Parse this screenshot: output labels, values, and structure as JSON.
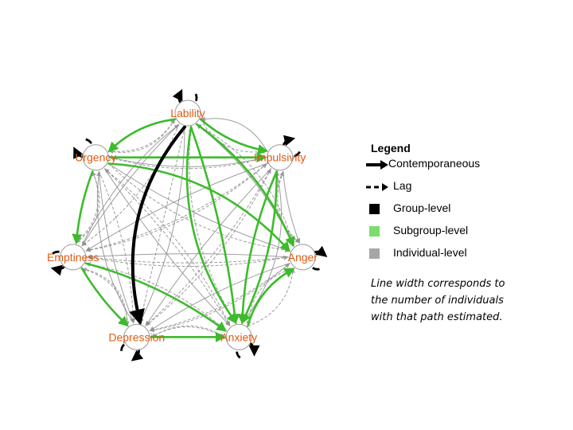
{
  "nodes": [
    {
      "id": "lability",
      "label": "Lability"
    },
    {
      "id": "impulsivity",
      "label": "Impulsivity"
    },
    {
      "id": "anger",
      "label": "Anger"
    },
    {
      "id": "anxiety",
      "label": "Anxiety"
    },
    {
      "id": "depression",
      "label": "Depression"
    },
    {
      "id": "emptiness",
      "label": "Emptiness"
    },
    {
      "id": "urgency",
      "label": "Urgency"
    }
  ],
  "colors": {
    "group": "#000000",
    "subgroup": "#3dbb2c",
    "individual": "#8c8c8c",
    "label": "#e05a14",
    "swatch_group": "#000000",
    "swatch_subgroup": "#7ddc6e",
    "swatch_individual": "#a6a6a6"
  },
  "edges": {
    "group": [
      {
        "from": "lability",
        "to": "depression",
        "type": "contemporaneous",
        "bend": 0.22
      }
    ],
    "subgroup": [
      {
        "from": "urgency",
        "to": "impulsivity",
        "type": "contemporaneous",
        "bend": 0.0
      },
      {
        "from": "lability",
        "to": "urgency",
        "type": "contemporaneous",
        "bend": 0.12
      },
      {
        "from": "urgency",
        "to": "anger",
        "type": "contemporaneous",
        "bend": -0.18
      },
      {
        "from": "urgency",
        "to": "emptiness",
        "type": "contemporaneous",
        "bend": 0.05
      },
      {
        "from": "lability",
        "to": "anxiety",
        "type": "contemporaneous",
        "bend": 0.18
      },
      {
        "from": "lability",
        "to": "anxiety",
        "type": "contemporaneous",
        "bend": -0.05
      },
      {
        "from": "lability",
        "to": "anger",
        "type": "contemporaneous",
        "bend": -0.12
      },
      {
        "from": "emptiness",
        "to": "depression",
        "type": "contemporaneous",
        "bend": 0.05
      },
      {
        "from": "emptiness",
        "to": "anxiety",
        "type": "contemporaneous",
        "bend": -0.08
      },
      {
        "from": "depression",
        "to": "anxiety",
        "type": "contemporaneous",
        "bend": 0.0
      },
      {
        "from": "anxiety",
        "to": "anger",
        "type": "contemporaneous",
        "bend": -0.15
      },
      {
        "from": "impulsivity",
        "to": "anxiety",
        "type": "contemporaneous",
        "bend": 0.08
      },
      {
        "from": "impulsivity",
        "to": "anxiety",
        "type": "contemporaneous",
        "bend": -0.1
      },
      {
        "from": "lability",
        "to": "impulsivity",
        "type": "contemporaneous",
        "bend": 0.1
      }
    ],
    "individual": [
      {
        "from": "lability",
        "to": "impulsivity",
        "type": "lag",
        "bend": 0.25
      },
      {
        "from": "impulsivity",
        "to": "anger",
        "type": "contemporaneous",
        "bend": 0.05
      },
      {
        "from": "impulsivity",
        "to": "anger",
        "type": "lag",
        "bend": 0.28
      },
      {
        "from": "anger",
        "to": "anxiety",
        "type": "lag",
        "bend": 0.25
      },
      {
        "from": "anxiety",
        "to": "depression",
        "type": "lag",
        "bend": 0.22
      },
      {
        "from": "depression",
        "to": "emptiness",
        "type": "lag",
        "bend": 0.25
      },
      {
        "from": "emptiness",
        "to": "urgency",
        "type": "lag",
        "bend": 0.28
      },
      {
        "from": "urgency",
        "to": "lability",
        "type": "lag",
        "bend": 0.25
      },
      {
        "from": "lability",
        "to": "emptiness",
        "type": "contemporaneous",
        "bend": 0.05
      },
      {
        "from": "lability",
        "to": "emptiness",
        "type": "lag",
        "bend": -0.12
      },
      {
        "from": "lability",
        "to": "depression",
        "type": "contemporaneous",
        "bend": -0.1
      },
      {
        "from": "lability",
        "to": "depression",
        "type": "lag",
        "bend": 0.0
      },
      {
        "from": "urgency",
        "to": "depression",
        "type": "contemporaneous",
        "bend": 0.06
      },
      {
        "from": "urgency",
        "to": "depression",
        "type": "lag",
        "bend": -0.08
      },
      {
        "from": "urgency",
        "to": "anxiety",
        "type": "contemporaneous",
        "bend": 0.04
      },
      {
        "from": "urgency",
        "to": "anxiety",
        "type": "lag",
        "bend": -0.06
      },
      {
        "from": "urgency",
        "to": "impulsivity",
        "type": "lag",
        "bend": 0.12
      },
      {
        "from": "urgency",
        "to": "anger",
        "type": "contemporaneous",
        "bend": 0.06
      },
      {
        "from": "urgency",
        "to": "anger",
        "type": "lag",
        "bend": 0.14
      },
      {
        "from": "impulsivity",
        "to": "emptiness",
        "type": "contemporaneous",
        "bend": 0.05
      },
      {
        "from": "impulsivity",
        "to": "emptiness",
        "type": "lag",
        "bend": -0.1
      },
      {
        "from": "impulsivity",
        "to": "depression",
        "type": "contemporaneous",
        "bend": 0.04
      },
      {
        "from": "impulsivity",
        "to": "depression",
        "type": "lag",
        "bend": -0.07
      },
      {
        "from": "impulsivity",
        "to": "urgency",
        "type": "contemporaneous",
        "bend": -0.1
      },
      {
        "from": "anger",
        "to": "emptiness",
        "type": "contemporaneous",
        "bend": 0.03
      },
      {
        "from": "anger",
        "to": "emptiness",
        "type": "lag",
        "bend": -0.05
      },
      {
        "from": "anger",
        "to": "depression",
        "type": "contemporaneous",
        "bend": 0.06
      },
      {
        "from": "anger",
        "to": "depression",
        "type": "lag",
        "bend": -0.1
      },
      {
        "from": "anger",
        "to": "lability",
        "type": "contemporaneous",
        "bend": 0.1
      },
      {
        "from": "anger",
        "to": "lability",
        "type": "lag",
        "bend": 0.18
      },
      {
        "from": "anxiety",
        "to": "lability",
        "type": "lag",
        "bend": -0.15
      },
      {
        "from": "anxiety",
        "to": "urgency",
        "type": "lag",
        "bend": 0.1
      },
      {
        "from": "anxiety",
        "to": "emptiness",
        "type": "lag",
        "bend": 0.12
      },
      {
        "from": "anxiety",
        "to": "impulsivity",
        "type": "contemporaneous",
        "bend": 0.2
      },
      {
        "from": "depression",
        "to": "impulsivity",
        "type": "lag",
        "bend": 0.1
      },
      {
        "from": "depression",
        "to": "anger",
        "type": "lag",
        "bend": 0.12
      },
      {
        "from": "depression",
        "to": "anxiety",
        "type": "lag",
        "bend": -0.2
      },
      {
        "from": "depression",
        "to": "urgency",
        "type": "contemporaneous",
        "bend": -0.15
      },
      {
        "from": "emptiness",
        "to": "lability",
        "type": "contemporaneous",
        "bend": -0.1
      },
      {
        "from": "emptiness",
        "to": "anger",
        "type": "lag",
        "bend": 0.08
      },
      {
        "from": "emptiness",
        "to": "impulsivity",
        "type": "lag",
        "bend": 0.12
      },
      {
        "from": "emptiness",
        "to": "depression",
        "type": "lag",
        "bend": -0.28
      },
      {
        "from": "urgency",
        "to": "emptiness",
        "type": "lag",
        "bend": -0.25
      },
      {
        "from": "lability",
        "to": "urgency",
        "type": "lag",
        "bend": -0.22
      },
      {
        "from": "impulsivity",
        "to": "lability",
        "type": "contemporaneous",
        "bend": 0.25
      },
      {
        "from": "anger",
        "to": "impulsivity",
        "type": "lag",
        "bend": -0.25
      },
      {
        "from": "anxiety",
        "to": "anger",
        "type": "lag",
        "bend": 0.22
      }
    ],
    "self_loops": [
      {
        "node": "lability",
        "type": "group"
      },
      {
        "node": "impulsivity",
        "type": "group"
      },
      {
        "node": "anger",
        "type": "group"
      },
      {
        "node": "anxiety",
        "type": "group"
      },
      {
        "node": "depression",
        "type": "group"
      },
      {
        "node": "emptiness",
        "type": "group"
      },
      {
        "node": "urgency",
        "type": "group"
      }
    ]
  },
  "legend": {
    "title": "Legend",
    "contemporaneous": "Contemporaneous",
    "lag": "Lag",
    "group": "Group-level",
    "subgroup": "Subgroup-level",
    "individual": "Individual-level",
    "note": "Line width corresponds to the number of individuals with that path estimated."
  }
}
